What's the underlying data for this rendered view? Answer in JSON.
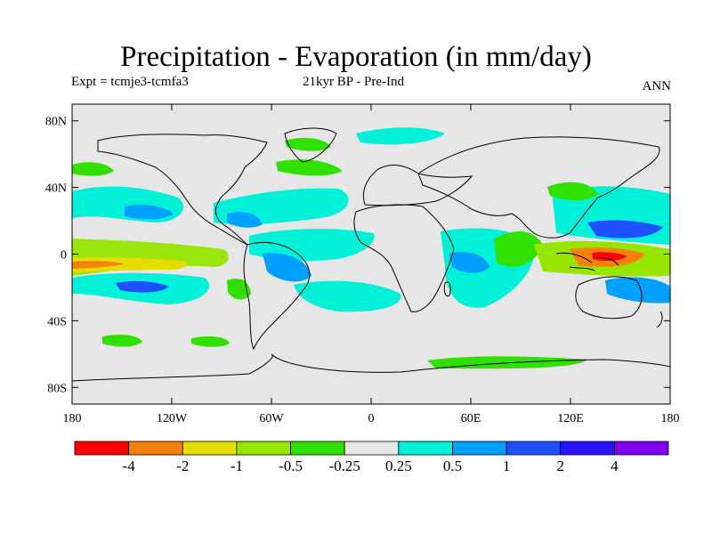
{
  "header": {
    "title": "Precipitation - Evaporation (in mm/day)",
    "expt": "Expt = tcmje3-tcmfa3",
    "period": "21kyr BP - Pre-Ind",
    "season": "ANN"
  },
  "map": {
    "projection": "cylindrical-equidistant",
    "lon_range": [
      -180,
      180
    ],
    "lat_range": [
      -90,
      90
    ],
    "background_color": "#e6e6e6",
    "coastline_color": "#000000",
    "y_ticks": [
      {
        "lat": 80,
        "label": "80N"
      },
      {
        "lat": 40,
        "label": "40N"
      },
      {
        "lat": 0,
        "label": "0"
      },
      {
        "lat": -40,
        "label": "40S"
      },
      {
        "lat": -80,
        "label": "80S"
      }
    ],
    "x_ticks": [
      {
        "lon": -180,
        "label": "180"
      },
      {
        "lon": -120,
        "label": "120W"
      },
      {
        "lon": -60,
        "label": "60W"
      },
      {
        "lon": 0,
        "label": "0"
      },
      {
        "lon": 60,
        "label": "60E"
      },
      {
        "lon": 120,
        "label": "120E"
      },
      {
        "lon": 180,
        "label": "180"
      }
    ]
  },
  "colorbar": {
    "colors": [
      "#ff0000",
      "#f5800a",
      "#e6dc00",
      "#96e600",
      "#30e000",
      "#e6e6e6",
      "#00f0d8",
      "#00a0ff",
      "#1e50ff",
      "#2814ff",
      "#8200f0"
    ],
    "labels": [
      "-4",
      "-2",
      "-1",
      "-0.5",
      "-0.25",
      "0.25",
      "0.5",
      "1",
      "2",
      "4"
    ]
  }
}
